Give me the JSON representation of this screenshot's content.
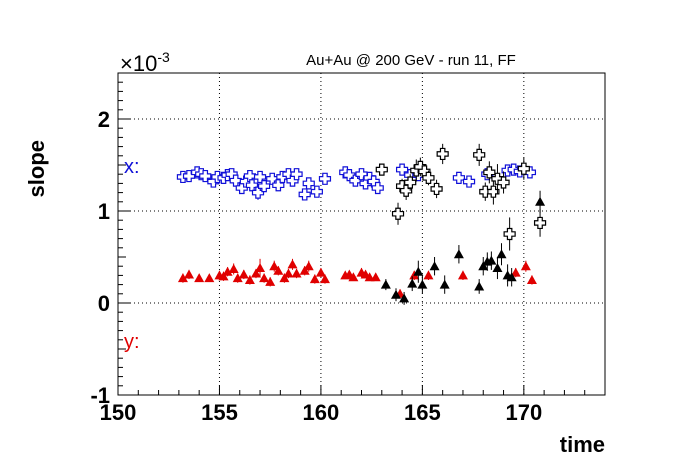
{
  "chart_data": {
    "type": "scatter",
    "title": "Au+Au @ 200 GeV - run 11, FF",
    "xlabel": "time",
    "ylabel": "slope",
    "y_multiplier": "×10",
    "y_exponent": "-3",
    "xlim": [
      150,
      174
    ],
    "ylim": [
      -1,
      2.5
    ],
    "x_ticks": [
      150,
      155,
      160,
      165,
      170
    ],
    "y_ticks": [
      -1,
      0,
      1,
      2
    ],
    "grid": true,
    "annotations": [
      {
        "text": "x:",
        "color": "#1010d8"
      },
      {
        "text": "y:",
        "color": "#e00000"
      }
    ],
    "series": [
      {
        "marker": "open-cross",
        "color": "#1010d8",
        "x": [
          153.2,
          153.5,
          153.9,
          154.1,
          154.3,
          154.7,
          154.9,
          155.2,
          155.4,
          155.6,
          155.8,
          156.1,
          156.3,
          156.5,
          156.6,
          156.9,
          157.0,
          157.2,
          157.6,
          157.9,
          158.1,
          158.4,
          158.6,
          158.8,
          159.2,
          159.4,
          159.8,
          160.2,
          161.2,
          161.4,
          161.7,
          162.0,
          162.2,
          162.4,
          162.6,
          162.8,
          164.0,
          164.4,
          164.8,
          166.8,
          167.3,
          168.2,
          169.2,
          169.5,
          169.8,
          170.3
        ],
        "y": [
          1.37,
          1.38,
          1.42,
          1.4,
          1.38,
          1.32,
          1.37,
          1.36,
          1.39,
          1.4,
          1.33,
          1.25,
          1.32,
          1.38,
          1.28,
          1.2,
          1.37,
          1.27,
          1.35,
          1.28,
          1.37,
          1.4,
          1.33,
          1.4,
          1.18,
          1.3,
          1.21,
          1.35,
          1.42,
          1.39,
          1.33,
          1.4,
          1.3,
          1.36,
          1.32,
          1.25,
          1.45,
          1.39,
          1.39,
          1.36,
          1.32,
          1.4,
          1.44,
          1.45,
          1.43,
          1.42
        ],
        "err": [
          0.06,
          0.05,
          0.05,
          0.05,
          0.05,
          0.06,
          0.05,
          0.05,
          0.05,
          0.05,
          0.05,
          0.06,
          0.05,
          0.05,
          0.05,
          0.08,
          0.05,
          0.06,
          0.05,
          0.05,
          0.05,
          0.05,
          0.05,
          0.05,
          0.06,
          0.05,
          0.06,
          0.06,
          0.05,
          0.05,
          0.05,
          0.05,
          0.05,
          0.05,
          0.05,
          0.06,
          0.05,
          0.05,
          0.05,
          0.05,
          0.05,
          0.05,
          0.06,
          0.05,
          0.05,
          0.06
        ]
      },
      {
        "marker": "open-cross",
        "color": "#000000",
        "x": [
          163.0,
          163.8,
          164.0,
          164.2,
          164.4,
          164.7,
          164.9,
          165.1,
          165.3,
          165.7,
          166.0,
          167.8,
          168.1,
          168.3,
          168.5,
          168.7,
          169.0,
          169.3,
          170.0,
          170.8
        ],
        "y": [
          1.45,
          0.97,
          1.27,
          1.22,
          1.31,
          1.44,
          1.48,
          1.43,
          1.36,
          1.24,
          1.62,
          1.61,
          1.21,
          1.42,
          1.21,
          1.35,
          1.31,
          0.75,
          1.46,
          0.87
        ],
        "err": [
          0.06,
          0.12,
          0.08,
          0.1,
          0.09,
          0.12,
          0.1,
          0.08,
          0.08,
          0.1,
          0.11,
          0.12,
          0.1,
          0.12,
          0.14,
          0.16,
          0.12,
          0.18,
          0.12,
          0.15
        ]
      },
      {
        "marker": "triangle",
        "color": "#e00000",
        "x": [
          153.2,
          153.5,
          154.0,
          154.5,
          155.0,
          155.2,
          155.4,
          155.7,
          155.9,
          156.2,
          156.5,
          156.8,
          157.0,
          157.2,
          157.5,
          157.7,
          157.9,
          158.2,
          158.4,
          158.6,
          158.8,
          159.2,
          159.4,
          159.7,
          160.0,
          160.2,
          161.2,
          161.4,
          161.6,
          162.0,
          162.2,
          162.4,
          162.7,
          163.9,
          164.6,
          165.3,
          167.0,
          169.6,
          170.1,
          170.4
        ],
        "y": [
          0.27,
          0.31,
          0.27,
          0.27,
          0.3,
          0.29,
          0.34,
          0.37,
          0.27,
          0.31,
          0.25,
          0.32,
          0.38,
          0.27,
          0.23,
          0.4,
          0.35,
          0.27,
          0.32,
          0.42,
          0.32,
          0.35,
          0.4,
          0.26,
          0.33,
          0.26,
          0.3,
          0.31,
          0.28,
          0.33,
          0.31,
          0.28,
          0.28,
          0.1,
          0.3,
          0.3,
          0.3,
          0.33,
          0.4,
          0.25
        ],
        "err": [
          0.05,
          0.05,
          0.04,
          0.04,
          0.05,
          0.05,
          0.05,
          0.06,
          0.05,
          0.05,
          0.05,
          0.05,
          0.1,
          0.05,
          0.05,
          0.06,
          0.05,
          0.05,
          0.05,
          0.06,
          0.05,
          0.05,
          0.06,
          0.05,
          0.05,
          0.05,
          0.04,
          0.04,
          0.04,
          0.05,
          0.04,
          0.04,
          0.04,
          0.05,
          0.05,
          0.05,
          0.05,
          0.05,
          0.06,
          0.05
        ]
      },
      {
        "marker": "triangle",
        "color": "#000000",
        "x": [
          163.2,
          163.7,
          164.1,
          164.5,
          164.8,
          165.0,
          165.6,
          166.1,
          166.8,
          167.8,
          168.0,
          168.2,
          168.4,
          168.7,
          168.9,
          169.2,
          169.4,
          170.8
        ],
        "y": [
          0.2,
          0.09,
          0.05,
          0.21,
          0.34,
          0.2,
          0.4,
          0.2,
          0.53,
          0.18,
          0.4,
          0.45,
          0.46,
          0.38,
          0.53,
          0.3,
          0.28,
          1.1
        ],
        "err": [
          0.06,
          0.07,
          0.07,
          0.08,
          0.12,
          0.1,
          0.1,
          0.1,
          0.1,
          0.08,
          0.1,
          0.1,
          0.1,
          0.12,
          0.12,
          0.12,
          0.1,
          0.12
        ]
      }
    ]
  }
}
